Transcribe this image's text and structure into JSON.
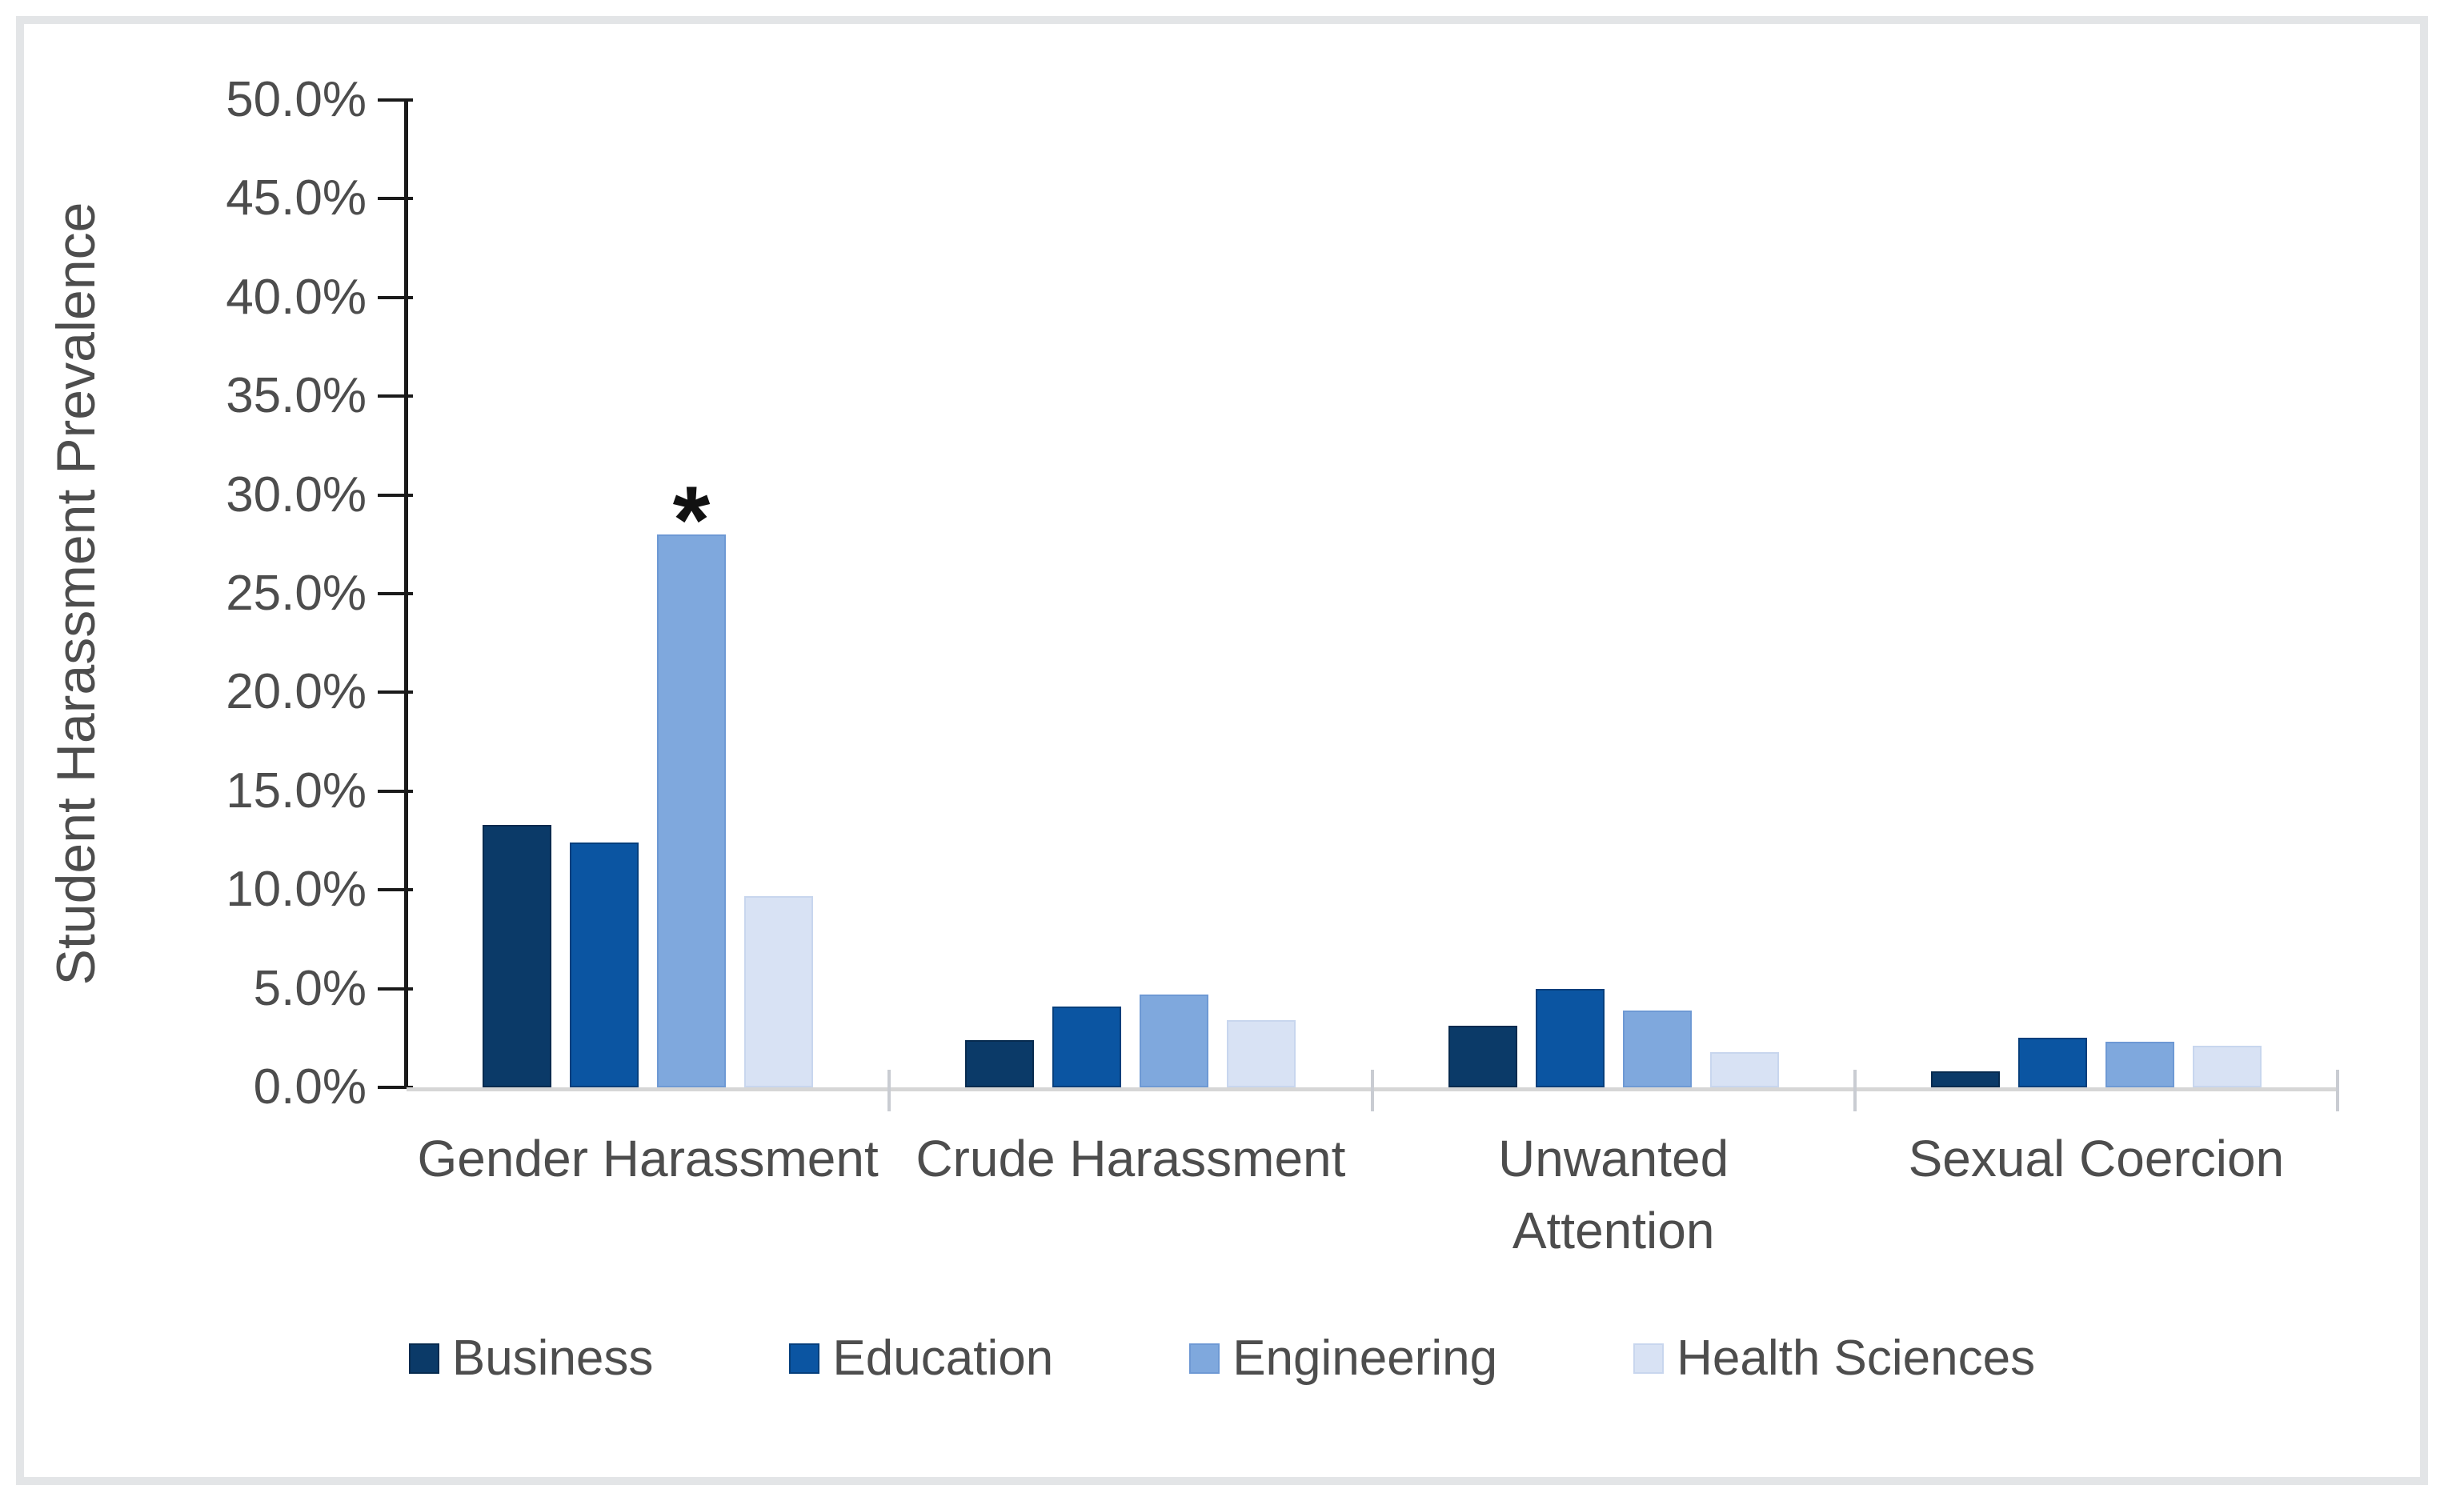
{
  "figure": {
    "background_color": "#ffffff",
    "frame_border_color": "#e3e5e7"
  },
  "chart_data": {
    "type": "bar",
    "title": "",
    "xlabel": "",
    "ylabel": "Student Harassment Prevalence",
    "units": "percent",
    "ylim": [
      0,
      50
    ],
    "ytick_step": 5,
    "y_tick_labels": [
      "50.0%",
      "45.0%",
      "40.0%",
      "35.0%",
      "30.0%",
      "25.0%",
      "20.0%",
      "15.0%",
      "10.0%",
      "5.0%",
      "0.0%"
    ],
    "grid": "off",
    "legend_position": "bottom",
    "categories": [
      "Gender Harassment",
      "Crude Harassment",
      "Unwanted Attention",
      "Sexual Coercion"
    ],
    "series": [
      {
        "name": "Business",
        "color": "#0b3a68",
        "border_color": "#072b4f",
        "values": [
          13.3,
          2.4,
          3.1,
          0.8
        ]
      },
      {
        "name": "Education",
        "color": "#0b55a2",
        "border_color": "#063f7c",
        "values": [
          12.4,
          4.1,
          5.0,
          2.5
        ]
      },
      {
        "name": "Engineering",
        "color": "#7fa8dd",
        "border_color": "#6e99d4",
        "values": [
          28.0,
          4.7,
          3.9,
          2.3
        ]
      },
      {
        "name": "Health Sciences",
        "color": "#d8e2f4",
        "border_color": "#c8d6ee",
        "values": [
          9.7,
          3.4,
          1.8,
          2.1
        ]
      }
    ],
    "annotations": [
      {
        "text": "*",
        "category": "Gender Harassment",
        "series": "Engineering"
      }
    ],
    "axis_style": {
      "text_color": "#4d4d4d",
      "y_axis_line_color": "#1a1a1a",
      "x_axis_line_color": "#d6d6d6",
      "category_tick_color": "#c9ccd2"
    }
  }
}
